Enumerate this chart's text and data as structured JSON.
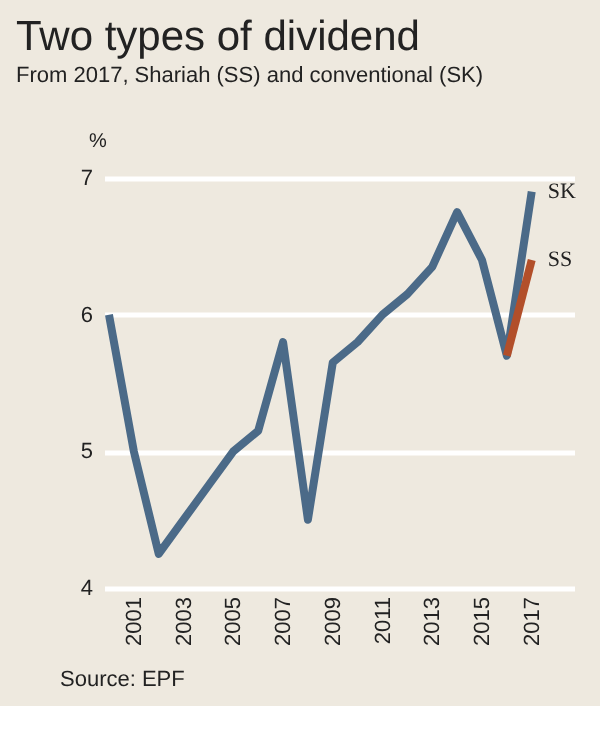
{
  "chart_data": {
    "type": "line",
    "title": "Two types of dividend",
    "subtitle": "From 2017, Shariah (SS) and conventional (SK)",
    "ylabel": "%",
    "x": [
      2000,
      2001,
      2002,
      2003,
      2004,
      2005,
      2006,
      2007,
      2008,
      2009,
      2010,
      2011,
      2012,
      2013,
      2014,
      2015,
      2016,
      2017
    ],
    "series": [
      {
        "name": "SK",
        "color": "#4b6a88",
        "values": [
          6.0,
          5.0,
          4.25,
          4.5,
          4.75,
          5.0,
          5.15,
          5.8,
          4.5,
          5.65,
          5.8,
          6.0,
          6.15,
          6.35,
          6.75,
          6.4,
          5.7,
          6.9
        ]
      },
      {
        "name": "SS",
        "color": "#b24f2a",
        "x": [
          2016,
          2017
        ],
        "values": [
          5.7,
          6.4
        ]
      }
    ],
    "xlim": [
      1999.8,
      2018.7
    ],
    "xticks": [
      2001,
      2003,
      2005,
      2007,
      2009,
      2011,
      2013,
      2015,
      2017
    ],
    "ylim": [
      4,
      7
    ],
    "yticks": [
      4,
      5,
      6,
      7
    ],
    "grid": "y",
    "legend": false,
    "marker": "none",
    "line_style": "solid",
    "annotations": [
      "Source: EPF"
    ]
  }
}
